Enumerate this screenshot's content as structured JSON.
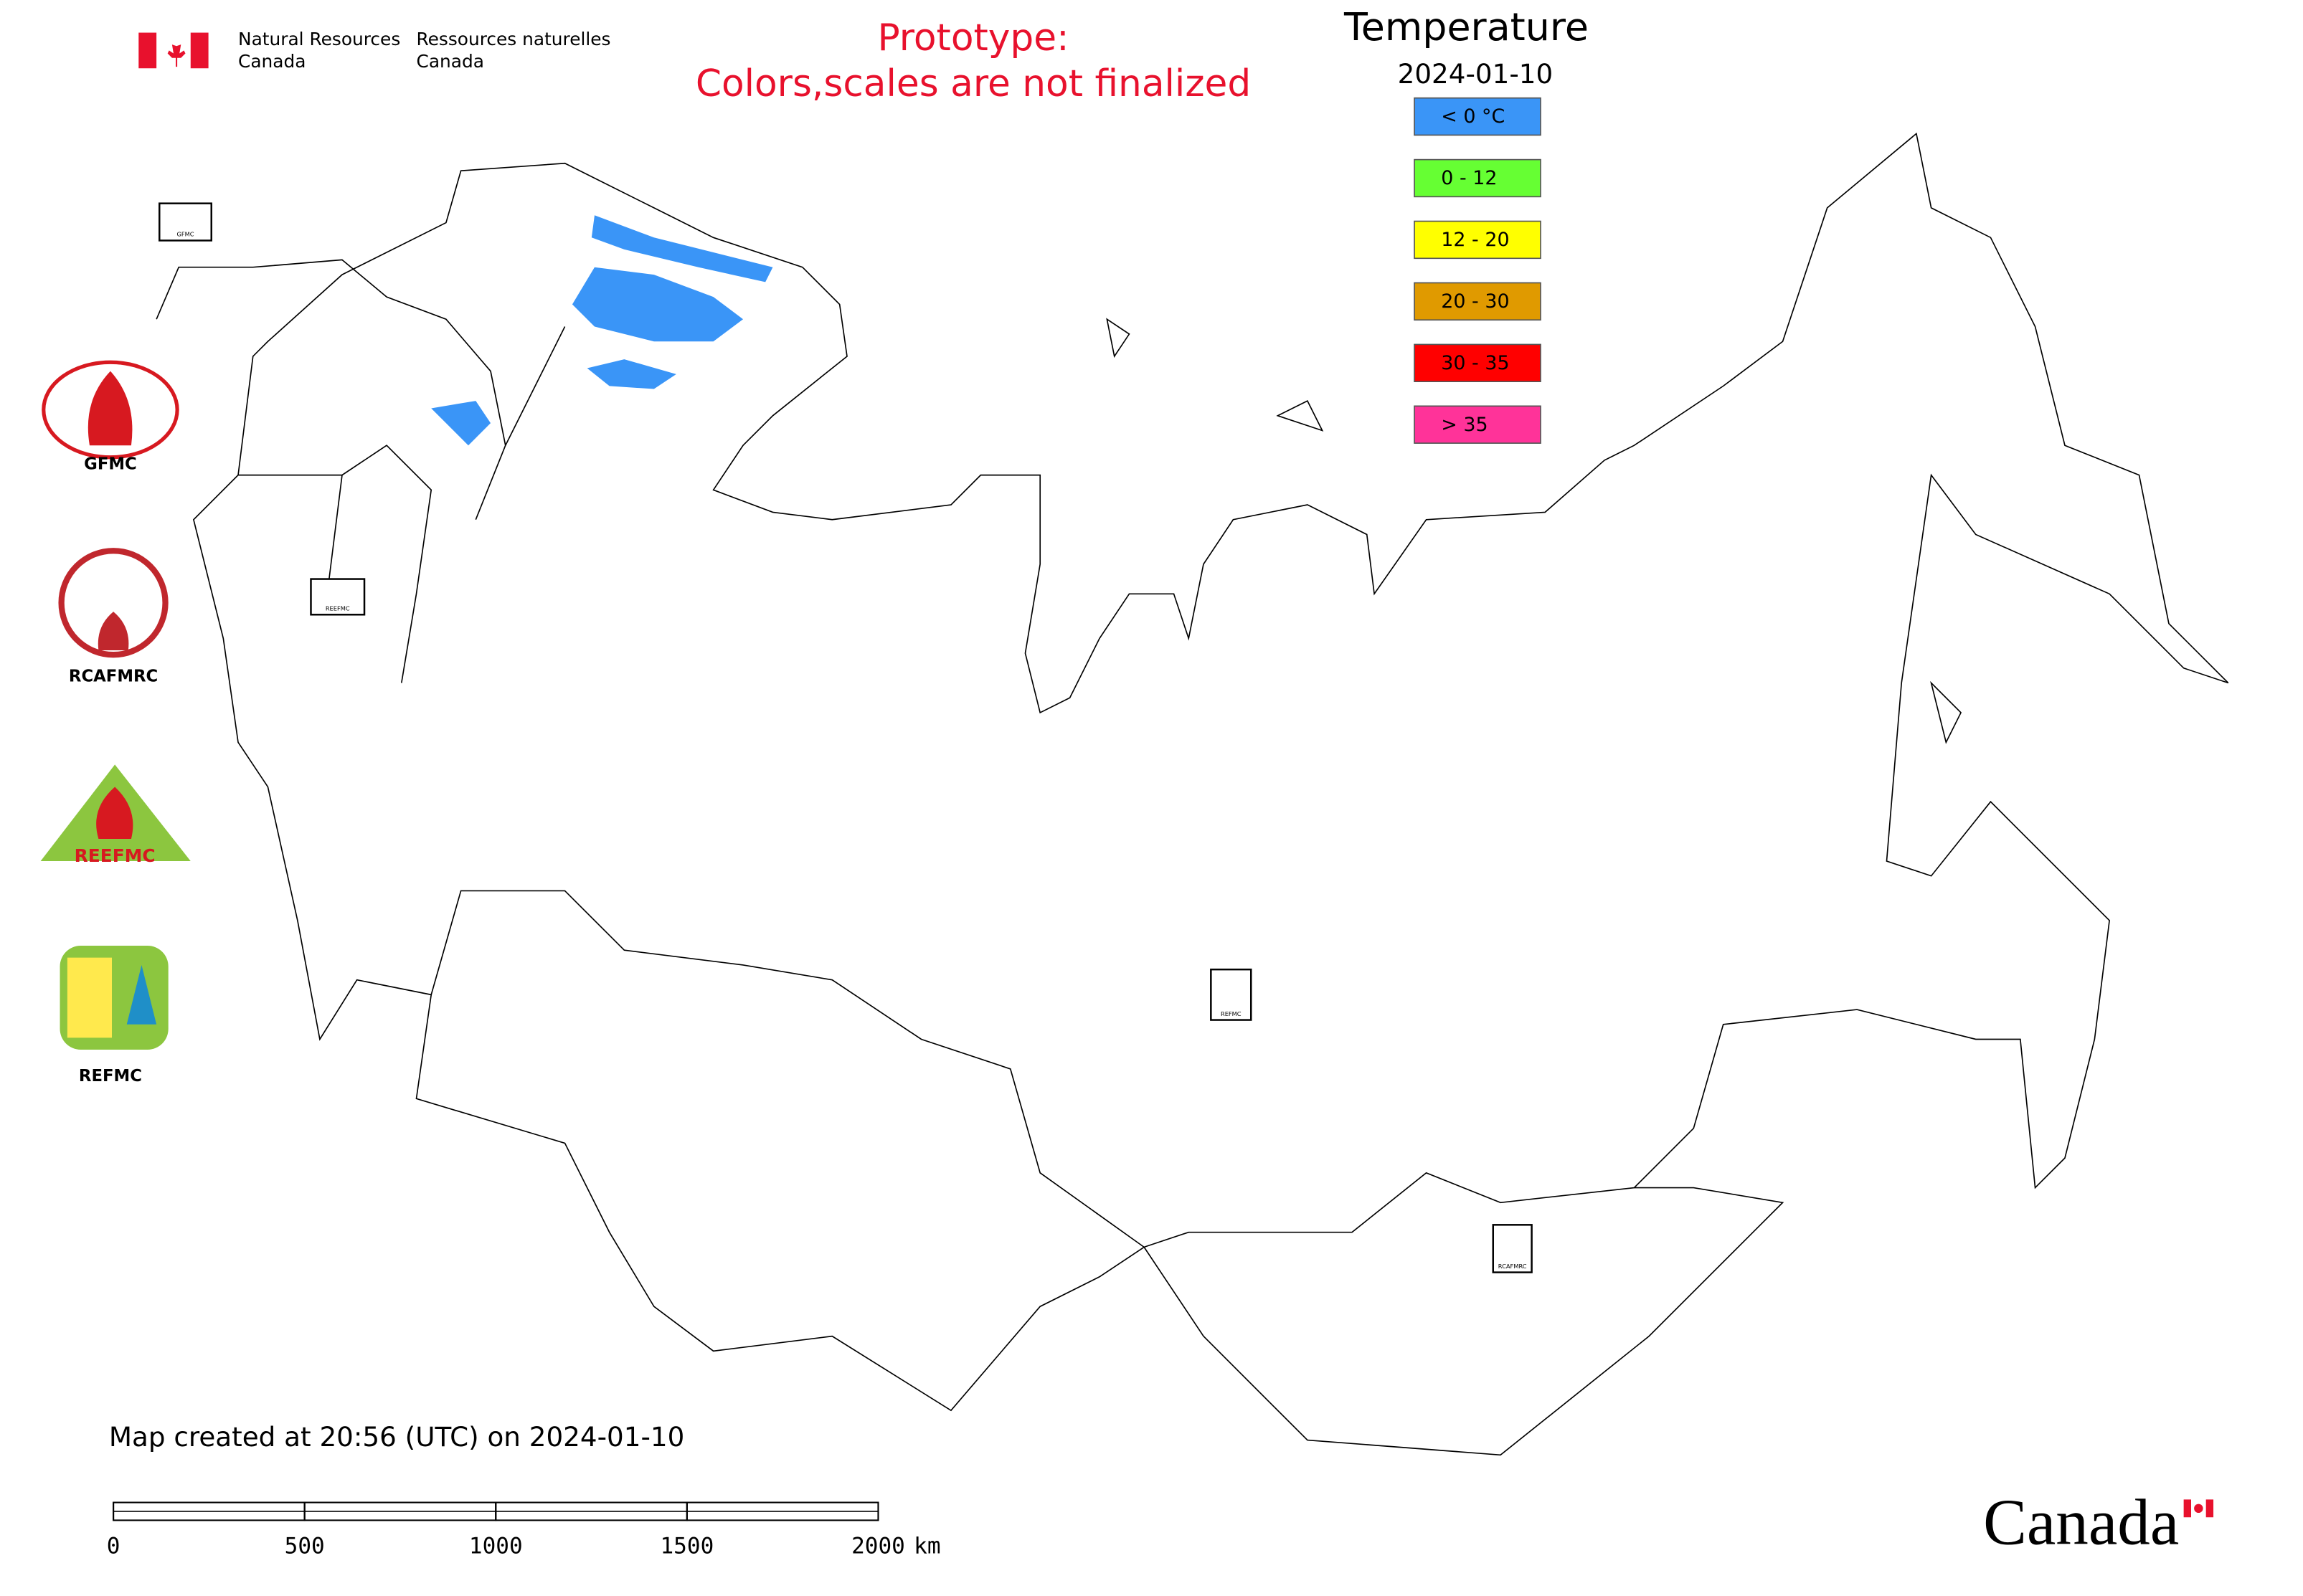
{
  "header": {
    "department_en": [
      "Natural Resources",
      "Canada"
    ],
    "department_fr": [
      "Ressources naturelles",
      "Canada"
    ]
  },
  "notice": {
    "title": "Prototype:",
    "text": "Colors,scales are not finalized"
  },
  "legend": {
    "title": "Temperature",
    "date": "2024-01-10",
    "items": [
      {
        "label": "< 0 °C",
        "color": "#3a95f7"
      },
      {
        "label": "0 - 12",
        "color": "#66ff33"
      },
      {
        "label": "12 - 20",
        "color": "#ffff00"
      },
      {
        "label": "20 - 30",
        "color": "#e09a00"
      },
      {
        "label": "30 - 35",
        "color": "#ff0000"
      },
      {
        "label": "> 35",
        "color": "#ff3399"
      }
    ]
  },
  "logos": [
    {
      "name": "GFMC",
      "label": "GFMC"
    },
    {
      "name": "RCAFMRC",
      "label": "RCAFMRC"
    },
    {
      "name": "REEFMC",
      "label": "REEFMC"
    },
    {
      "name": "REFMC",
      "label": "REFMC"
    }
  ],
  "map_markers": [
    "GFMC",
    "REEFMC",
    "REFMC",
    "RCAFMRC"
  ],
  "footer": {
    "created": "Map created at 20:56 (UTC) on 2024-01-10",
    "wordmark": "Canada"
  },
  "scale_bar": {
    "ticks": [
      0,
      500,
      1000,
      1500,
      2000
    ],
    "unit": "km"
  }
}
